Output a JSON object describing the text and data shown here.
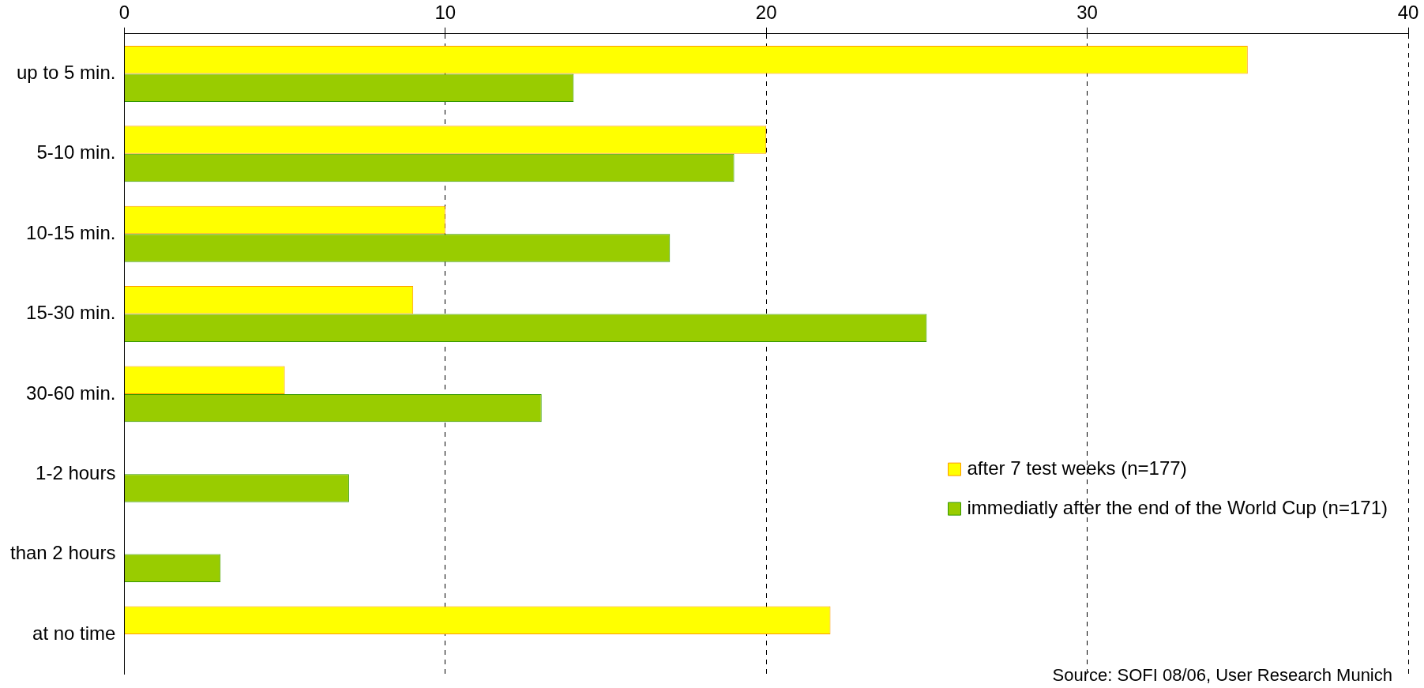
{
  "chart_data": {
    "type": "bar",
    "orientation": "horizontal",
    "categories": [
      "up to 5 min.",
      "5-10 min.",
      "10-15 min.",
      "15-30 min.",
      "30-60 min.",
      "1-2 hours",
      "than 2 hours",
      "at no time"
    ],
    "series": [
      {
        "name": "after 7 test weeks (n=177)",
        "color": "#ffff00",
        "values": [
          35,
          20,
          10,
          9,
          5,
          0,
          0,
          22
        ]
      },
      {
        "name": "immediatly after the end of the World Cup (n=171)",
        "color": "#99cc00",
        "values": [
          14,
          19,
          17,
          25,
          13,
          7,
          3,
          0
        ]
      }
    ],
    "xlim": [
      0,
      40
    ],
    "xticks": [
      0,
      10,
      20,
      30,
      40
    ],
    "grid": "x",
    "legend": "bottom right",
    "annotations": [
      "Source: SOFI 08/06, User Research Munich"
    ]
  }
}
